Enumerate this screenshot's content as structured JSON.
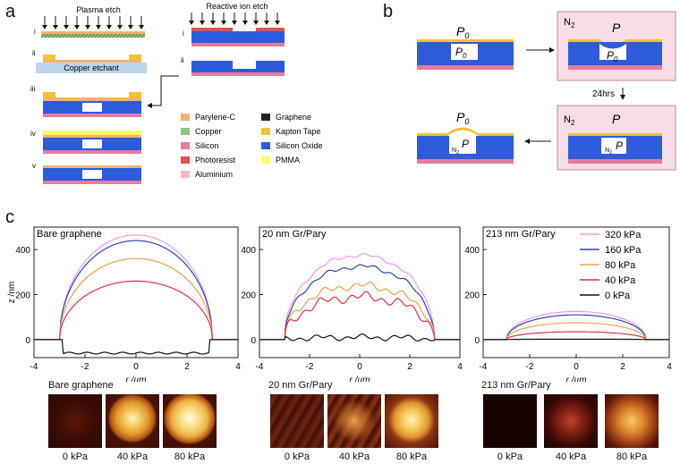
{
  "panel_labels": {
    "a": "a",
    "b": "b",
    "c": "c"
  },
  "panel_a": {
    "plasma_title": "Plasma etch",
    "rie_title": "Reactive ion etch",
    "copper_etchant": "Copper etchant",
    "steps_left": [
      "i",
      "ii",
      "iii",
      "iv",
      "v"
    ],
    "steps_right": [
      "i",
      "ii"
    ],
    "legend": [
      {
        "label": "Parylene-C",
        "color": "#f6b26b"
      },
      {
        "label": "Copper",
        "color": "#93c47d"
      },
      {
        "label": "Silicon",
        "color": "#e67c9c"
      },
      {
        "label": "Photoresist",
        "color": "#e05050"
      },
      {
        "label": "Aluminium",
        "color": "#f4b6c8"
      },
      {
        "label": "Graphene",
        "color": "#222222"
      },
      {
        "label": "Kapton Tape",
        "color": "#f1c232"
      },
      {
        "label": "Silicon Oxide",
        "color": "#2d5bdc"
      },
      {
        "label": "PMMA",
        "color": "#ffff66"
      }
    ]
  },
  "panel_b": {
    "p0": "P",
    "p0_sub": "0",
    "p": "P",
    "n2": "N",
    "n2_sub": "2",
    "time_label": "24hrs"
  },
  "panel_c": {
    "ylabel": "z /nm",
    "xlabel": "r /µm",
    "images_title": [
      "Bare graphene",
      "20 nm Gr/Pary",
      "213 nm Gr/Pary"
    ],
    "image_labels": [
      "0 kPa",
      "40 kPa",
      "80 kPa"
    ]
  },
  "chart_data": [
    {
      "type": "line",
      "title": "Bare graphene",
      "xlabel": "r /µm",
      "ylabel": "z /nm",
      "xlim": [
        -4,
        4
      ],
      "ylim": [
        -80,
        500
      ],
      "xticks": [
        -4,
        -2,
        0,
        2,
        4
      ],
      "yticks": [
        0,
        200,
        400
      ],
      "series": [
        {
          "name": "320 kPa",
          "color": "#ee99ee",
          "peak": 465,
          "noise": 0
        },
        {
          "name": "160 kPa",
          "color": "#3344aa",
          "peak": 440,
          "noise": 0
        },
        {
          "name": "80 kPa",
          "color": "#f0a050",
          "peak": 360,
          "noise": 0
        },
        {
          "name": "40 kPa",
          "color": "#dd3344",
          "peak": 260,
          "noise": 0
        },
        {
          "name": "0 kPa",
          "color": "#111111",
          "peak": -60,
          "noise": 0
        }
      ]
    },
    {
      "type": "line",
      "title": "20 nm Gr/Pary",
      "xlabel": "r /µm",
      "xlim": [
        -4,
        4
      ],
      "ylim": [
        -80,
        500
      ],
      "xticks": [
        -4,
        -2,
        0,
        2,
        4
      ],
      "yticks": [
        0,
        200,
        400
      ],
      "series": [
        {
          "name": "320 kPa",
          "color": "#ee99ee",
          "peak": 375,
          "noise": 10
        },
        {
          "name": "160 kPa",
          "color": "#3344aa",
          "peak": 325,
          "noise": 12
        },
        {
          "name": "80 kPa",
          "color": "#f0a050",
          "peak": 240,
          "noise": 20
        },
        {
          "name": "40 kPa",
          "color": "#dd3344",
          "peak": 190,
          "noise": 25
        },
        {
          "name": "0 kPa",
          "color": "#111111",
          "peak": 10,
          "noise": 15
        }
      ]
    },
    {
      "type": "line",
      "title": "213 nm Gr/Pary",
      "xlabel": "r /µm",
      "xlim": [
        -4,
        4
      ],
      "ylim": [
        -80,
        500
      ],
      "xticks": [
        -4,
        -2,
        0,
        2,
        4
      ],
      "yticks": [
        0,
        200,
        400
      ],
      "legend": [
        "320 kPa",
        "160 kPa",
        "80 kPa",
        "40 kPa",
        "0 kPa"
      ],
      "series": [
        {
          "name": "320 kPa",
          "color": "#ee99ee",
          "peak": 125,
          "noise": 0
        },
        {
          "name": "160 kPa",
          "color": "#3344aa",
          "peak": 110,
          "noise": 0
        },
        {
          "name": "80 kPa",
          "color": "#f0a050",
          "peak": 75,
          "noise": 0
        },
        {
          "name": "40 kPa",
          "color": "#dd3344",
          "peak": 35,
          "noise": 0
        },
        {
          "name": "0 kPa",
          "color": "#111111",
          "peak": 2,
          "noise": 0
        }
      ]
    }
  ]
}
